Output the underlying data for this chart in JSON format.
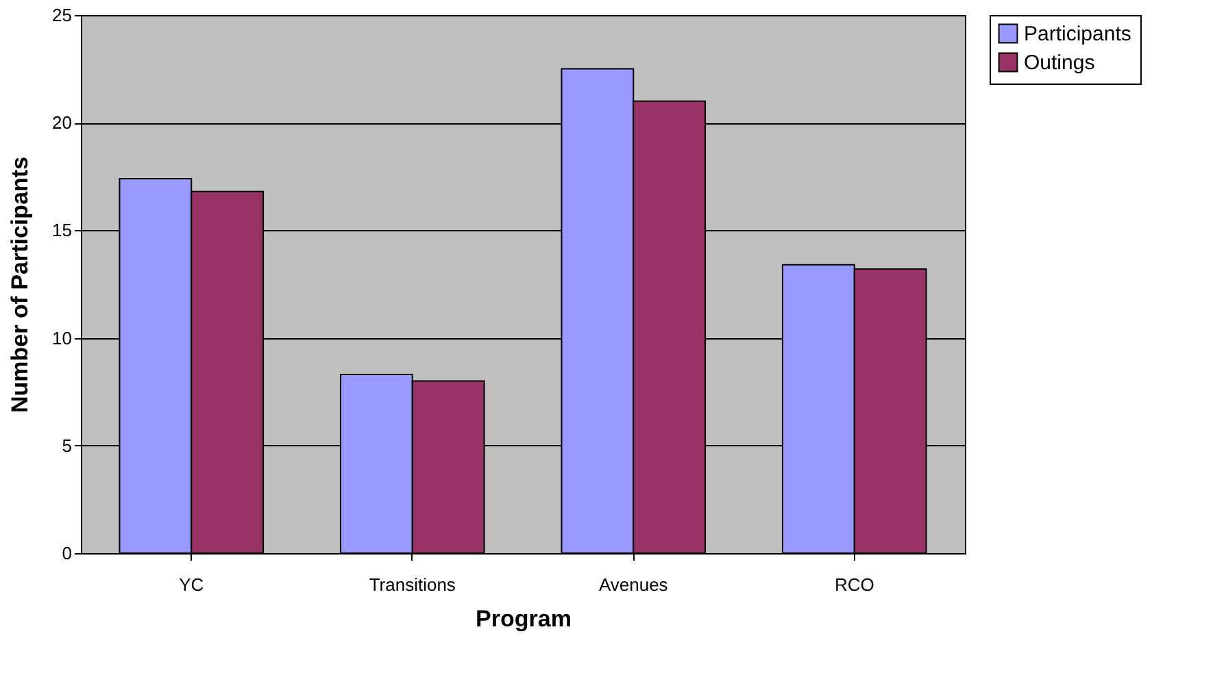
{
  "chart_data": {
    "type": "bar",
    "xlabel": "Program",
    "ylabel": "Number of Participants",
    "categories": [
      "YC",
      "Transitions",
      "Avenues",
      "RCO"
    ],
    "series": [
      {
        "name": "Participants",
        "color": "#9999ff",
        "values": [
          17.4,
          8.3,
          22.5,
          13.4
        ]
      },
      {
        "name": "Outings",
        "color": "#993366",
        "values": [
          16.8,
          8.0,
          21.0,
          13.2
        ]
      }
    ],
    "ylim": [
      0,
      25
    ],
    "yticks": [
      0,
      5,
      10,
      15,
      20,
      25
    ],
    "grid": "y",
    "legend": "right"
  }
}
